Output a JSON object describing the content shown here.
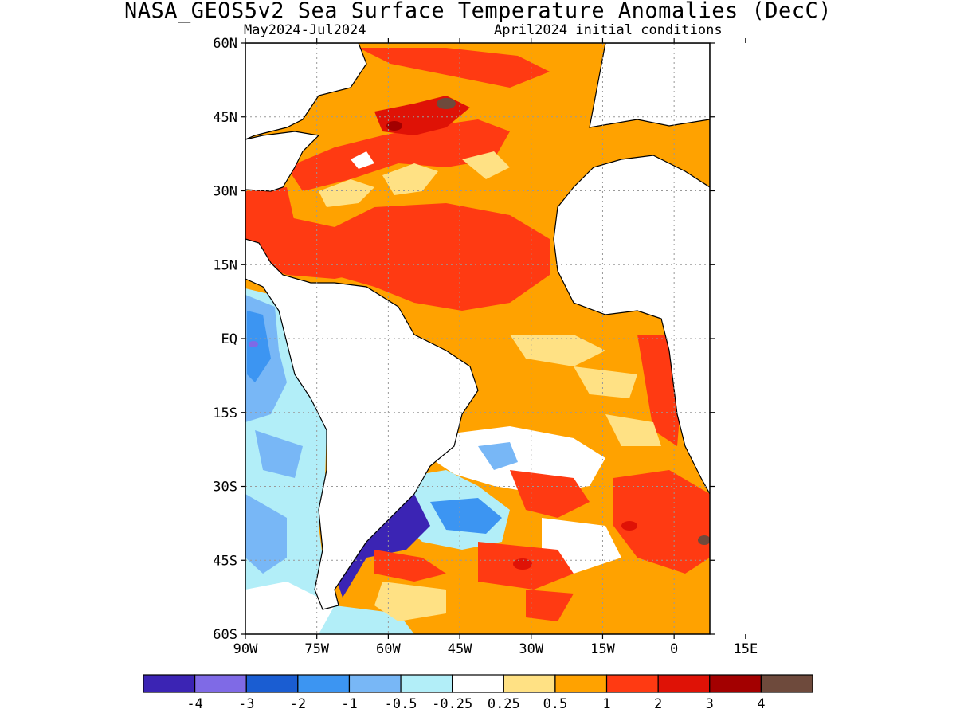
{
  "title": "NASA_GEOS5v2 Sea Surface Temperature Anomalies (DecC)",
  "subtitle_left": "May2024-Jul2024",
  "subtitle_right": "April2024 initial conditions",
  "map": {
    "lon_range": [
      -90,
      10
    ],
    "lat_range": [
      -60,
      60
    ],
    "y_ticks": [
      {
        "lat": 60,
        "label": "60N"
      },
      {
        "lat": 45,
        "label": "45N"
      },
      {
        "lat": 30,
        "label": "30N"
      },
      {
        "lat": 15,
        "label": "15N"
      },
      {
        "lat": 0,
        "label": "EQ"
      },
      {
        "lat": -15,
        "label": "15S"
      },
      {
        "lat": -30,
        "label": "30S"
      },
      {
        "lat": -45,
        "label": "45S"
      },
      {
        "lat": -60,
        "label": "60S"
      }
    ],
    "x_ticks": [
      {
        "lon": -90,
        "label": "90W"
      },
      {
        "lon": -75,
        "label": "75W"
      },
      {
        "lon": -60,
        "label": "60W"
      },
      {
        "lon": -45,
        "label": "45W"
      },
      {
        "lon": -30,
        "label": "30W"
      },
      {
        "lon": -15,
        "label": "15W"
      },
      {
        "lon": 0,
        "label": "0"
      },
      {
        "lon": 15,
        "label": "15E"
      }
    ],
    "grid": "dotted"
  },
  "colorbar": {
    "colors": [
      "#3b24b4",
      "#7f6ae6",
      "#1a5dd2",
      "#3c95f2",
      "#78b7f6",
      "#b2eef8",
      "#ffffff",
      "#ffe184",
      "#ffa200",
      "#ff3a12",
      "#df1206",
      "#a30000",
      "#6e4a3c"
    ],
    "labels": [
      "-4",
      "-3",
      "-2",
      "-1",
      "-0.5",
      "-0.25",
      "0.25",
      "0.5",
      "1",
      "2",
      "3",
      "4"
    ]
  }
}
